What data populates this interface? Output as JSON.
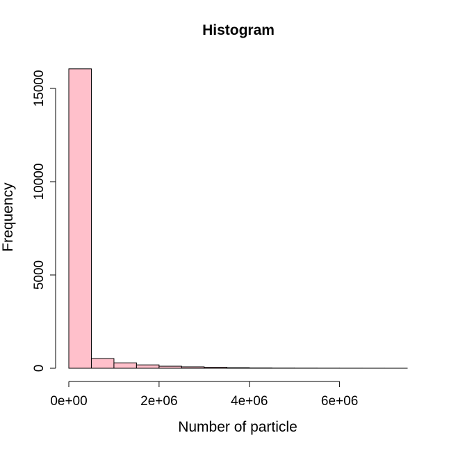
{
  "chart_data": {
    "type": "bar",
    "title": "Histogram",
    "xlabel": "Number of particle",
    "ylabel": "Frequency",
    "bin_width": 500000,
    "xlim": [
      0,
      7500000
    ],
    "ylim": [
      0,
      16000
    ],
    "x_ticks": [
      {
        "value": 0,
        "label": "0e+00"
      },
      {
        "value": 2000000,
        "label": "2e+06"
      },
      {
        "value": 4000000,
        "label": "4e+06"
      },
      {
        "value": 6000000,
        "label": "6e+06"
      }
    ],
    "y_ticks": [
      {
        "value": 0,
        "label": "0"
      },
      {
        "value": 5000,
        "label": "5000"
      },
      {
        "value": 10000,
        "label": "10000"
      },
      {
        "value": 15000,
        "label": "15000"
      }
    ],
    "bins": [
      {
        "start": 0,
        "end": 500000,
        "count": 16050
      },
      {
        "start": 500000,
        "end": 1000000,
        "count": 520
      },
      {
        "start": 1000000,
        "end": 1500000,
        "count": 290
      },
      {
        "start": 1500000,
        "end": 2000000,
        "count": 180
      },
      {
        "start": 2000000,
        "end": 2500000,
        "count": 110
      },
      {
        "start": 2500000,
        "end": 3000000,
        "count": 75
      },
      {
        "start": 3000000,
        "end": 3500000,
        "count": 55
      },
      {
        "start": 3500000,
        "end": 4000000,
        "count": 30
      },
      {
        "start": 4000000,
        "end": 4500000,
        "count": 18
      },
      {
        "start": 4500000,
        "end": 5000000,
        "count": 10
      },
      {
        "start": 5000000,
        "end": 5500000,
        "count": 7
      },
      {
        "start": 5500000,
        "end": 6000000,
        "count": 5
      },
      {
        "start": 6000000,
        "end": 6500000,
        "count": 3
      },
      {
        "start": 6500000,
        "end": 7000000,
        "count": 2
      },
      {
        "start": 7000000,
        "end": 7500000,
        "count": 1
      }
    ],
    "bar_color": "#ffc0cb",
    "grid": false,
    "legend": "none"
  }
}
